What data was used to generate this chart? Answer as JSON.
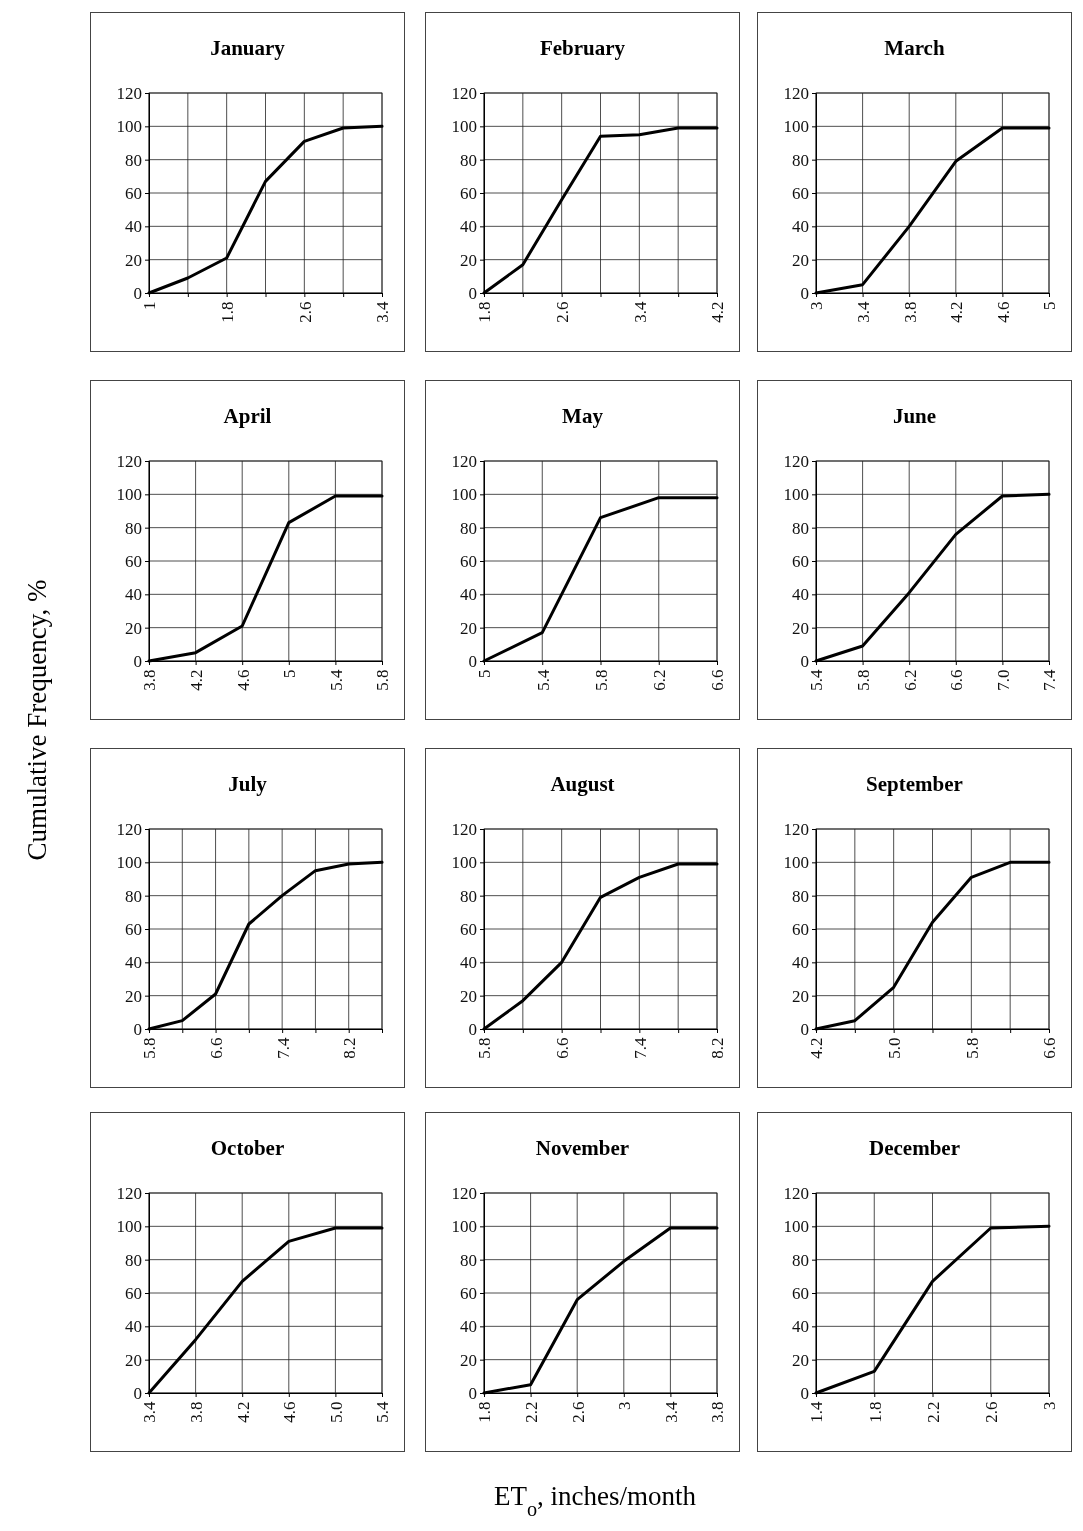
{
  "chart_data": [
    {
      "type": "line",
      "title": "January",
      "x": [
        1,
        1.4,
        1.8,
        2.2,
        2.6,
        3.0,
        3.4
      ],
      "series": [
        {
          "color": "#000000",
          "values": [
            0,
            9,
            21,
            67,
            91,
            99,
            100
          ]
        }
      ],
      "xlim": [
        1,
        3.4
      ],
      "xticks": [
        1,
        {
          "value": 1.4,
          "label": null
        },
        1.8,
        {
          "value": 2.2,
          "label": null
        },
        2.6,
        {
          "value": 3.0,
          "label": null
        },
        3.4
      ],
      "ylim": [
        0,
        120
      ],
      "yticks": [
        0,
        20,
        40,
        60,
        80,
        100,
        120
      ],
      "grid": true
    },
    {
      "type": "line",
      "title": "February",
      "x": [
        1.8,
        2.2,
        2.6,
        3.0,
        3.4,
        3.8,
        4.2
      ],
      "series": [
        {
          "color": "#000000",
          "values": [
            0,
            17,
            56,
            94,
            95,
            99,
            99
          ]
        }
      ],
      "xlim": [
        1.8,
        4.2
      ],
      "xticks": [
        1.8,
        {
          "value": 2.2,
          "label": null
        },
        2.6,
        {
          "value": 3.0,
          "label": null
        },
        3.4,
        {
          "value": 3.8,
          "label": null
        },
        4.2
      ],
      "ylim": [
        0,
        120
      ],
      "yticks": [
        0,
        20,
        40,
        60,
        80,
        100,
        120
      ],
      "grid": true
    },
    {
      "type": "line",
      "title": "March",
      "x": [
        3,
        3.4,
        3.8,
        4.2,
        4.6,
        5
      ],
      "series": [
        {
          "color": "#000000",
          "values": [
            0,
            5,
            40,
            79,
            99,
            99
          ]
        }
      ],
      "xlim": [
        3,
        5
      ],
      "xticks": [
        3,
        3.4,
        3.8,
        4.2,
        4.6,
        5
      ],
      "ylim": [
        0,
        120
      ],
      "yticks": [
        0,
        20,
        40,
        60,
        80,
        100,
        120
      ],
      "grid": true
    },
    {
      "type": "line",
      "title": "April",
      "ylabel": "Cumulative Frequency, %",
      "x": [
        3.8,
        4.2,
        4.6,
        5,
        5.4,
        5.8
      ],
      "series": [
        {
          "color": "#000000",
          "values": [
            0,
            5,
            21,
            83,
            99,
            99
          ]
        }
      ],
      "xlim": [
        3.8,
        5.8
      ],
      "xticks": [
        3.8,
        4.2,
        4.6,
        5,
        5.4,
        5.8
      ],
      "ylim": [
        0,
        120
      ],
      "yticks": [
        0,
        20,
        40,
        60,
        80,
        100,
        120
      ],
      "grid": true
    },
    {
      "type": "line",
      "title": "May",
      "x": [
        5,
        5.4,
        5.8,
        6.2,
        6.6
      ],
      "series": [
        {
          "color": "#000000",
          "values": [
            0,
            17,
            86,
            98,
            98
          ]
        }
      ],
      "xlim": [
        5,
        6.6
      ],
      "xticks": [
        5,
        5.4,
        5.8,
        6.2,
        6.6
      ],
      "ylim": [
        0,
        120
      ],
      "yticks": [
        0,
        20,
        40,
        60,
        80,
        100,
        120
      ],
      "grid": true
    },
    {
      "type": "line",
      "title": "June",
      "x": [
        5.4,
        5.8,
        6.2,
        6.6,
        7.0,
        7.4
      ],
      "series": [
        {
          "color": "#000000",
          "values": [
            0,
            9,
            41,
            76,
            99,
            100
          ]
        }
      ],
      "xlim": [
        5.4,
        7.4
      ],
      "xticks": [
        5.4,
        5.8,
        6.2,
        6.6,
        {
          "value": 7.0,
          "label": "7.0"
        },
        7.4
      ],
      "ylim": [
        0,
        120
      ],
      "yticks": [
        0,
        20,
        40,
        60,
        80,
        100,
        120
      ],
      "grid": true
    },
    {
      "type": "line",
      "title": "July",
      "x": [
        5.8,
        6.2,
        6.6,
        7.0,
        7.4,
        7.8,
        8.2,
        8.6
      ],
      "series": [
        {
          "color": "#000000",
          "values": [
            0,
            5,
            21,
            63,
            80,
            95,
            99,
            100
          ]
        }
      ],
      "xlim": [
        5.8,
        8.6
      ],
      "xticks": [
        5.8,
        {
          "value": 6.2,
          "label": null
        },
        6.6,
        {
          "value": 7.0,
          "label": null
        },
        7.4,
        {
          "value": 7.8,
          "label": null
        },
        8.2,
        {
          "value": 8.6,
          "label": null
        }
      ],
      "ylim": [
        0,
        120
      ],
      "yticks": [
        0,
        20,
        40,
        60,
        80,
        100,
        120
      ],
      "grid": true
    },
    {
      "type": "line",
      "title": "August",
      "x": [
        5.8,
        6.2,
        6.6,
        7.0,
        7.4,
        7.8,
        8.2
      ],
      "series": [
        {
          "color": "#000000",
          "values": [
            0,
            17,
            40,
            79,
            91,
            99,
            99
          ]
        }
      ],
      "xlim": [
        5.8,
        8.2
      ],
      "xticks": [
        5.8,
        {
          "value": 6.2,
          "label": null
        },
        6.6,
        {
          "value": 7.0,
          "label": null
        },
        7.4,
        {
          "value": 7.8,
          "label": null
        },
        8.2
      ],
      "ylim": [
        0,
        120
      ],
      "yticks": [
        0,
        20,
        40,
        60,
        80,
        100,
        120
      ],
      "grid": true
    },
    {
      "type": "line",
      "title": "September",
      "x": [
        4.2,
        4.6,
        5.0,
        5.4,
        5.8,
        6.2,
        6.6
      ],
      "series": [
        {
          "color": "#000000",
          "values": [
            0,
            5,
            25,
            64,
            91,
            100,
            100
          ]
        }
      ],
      "xlim": [
        4.2,
        6.6
      ],
      "xticks": [
        4.2,
        {
          "value": 4.6,
          "label": null
        },
        {
          "value": 5.0,
          "label": "5.0"
        },
        {
          "value": 5.4,
          "label": null
        },
        5.8,
        {
          "value": 6.2,
          "label": null
        },
        6.6
      ],
      "ylim": [
        0,
        120
      ],
      "yticks": [
        0,
        20,
        40,
        60,
        80,
        100,
        120
      ],
      "grid": true
    },
    {
      "type": "line",
      "title": "October",
      "x": [
        3.4,
        3.8,
        4.2,
        4.6,
        5.0,
        5.4
      ],
      "series": [
        {
          "color": "#000000",
          "values": [
            0,
            32,
            67,
            91,
            99,
            99
          ]
        }
      ],
      "xlim": [
        3.4,
        5.4
      ],
      "xticks": [
        3.4,
        3.8,
        4.2,
        4.6,
        {
          "value": 5.0,
          "label": "5.0"
        },
        5.4
      ],
      "ylim": [
        0,
        120
      ],
      "yticks": [
        0,
        20,
        40,
        60,
        80,
        100,
        120
      ],
      "grid": true
    },
    {
      "type": "line",
      "title": "November",
      "xlabel": "ET$_{o}$, inches/month",
      "x": [
        1.8,
        2.2,
        2.6,
        3,
        3.4,
        3.8
      ],
      "series": [
        {
          "color": "#000000",
          "values": [
            0,
            5,
            56,
            79,
            99,
            99
          ]
        }
      ],
      "xlim": [
        1.8,
        3.8
      ],
      "xticks": [
        1.8,
        2.2,
        2.6,
        3,
        3.4,
        3.8
      ],
      "ylim": [
        0,
        120
      ],
      "yticks": [
        0,
        20,
        40,
        60,
        80,
        100,
        120
      ],
      "grid": true
    },
    {
      "type": "line",
      "title": "December",
      "x": [
        1.4,
        1.8,
        2.2,
        2.6,
        3
      ],
      "series": [
        {
          "color": "#000000",
          "values": [
            0,
            13,
            67,
            99,
            100
          ]
        }
      ],
      "xlim": [
        1.4,
        3
      ],
      "xticks": [
        1.4,
        1.8,
        2.2,
        2.6,
        3
      ],
      "ylim": [
        0,
        120
      ],
      "yticks": [
        0,
        20,
        40,
        60,
        80,
        100,
        120
      ],
      "grid": true
    }
  ]
}
